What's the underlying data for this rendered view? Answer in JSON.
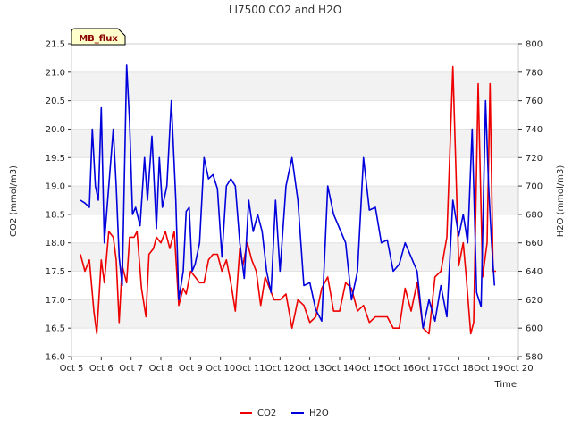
{
  "chart_data": {
    "type": "line",
    "title": "LI7500 CO2 and H2O",
    "xlabel": "Time",
    "ylabel_left": "CO2 (mmol/m3)",
    "ylabel_right": "H2O (mmol/m3)",
    "badge": "MB_flux",
    "x_ticks": [
      "Oct 5",
      "Oct 6",
      "Oct 7",
      "Oct 8",
      "Oct 9",
      "Oct 10",
      "Oct 11",
      "Oct 12",
      "Oct 13",
      "Oct 14",
      "Oct 15",
      "Oct 16",
      "Oct 17",
      "Oct 18",
      "Oct 19",
      "Oct 20"
    ],
    "xlim_days": [
      5,
      20
    ],
    "ylim_left": [
      16.0,
      21.5
    ],
    "y_ticks_left": [
      "16.0",
      "16.5",
      "17.0",
      "17.5",
      "18.0",
      "18.5",
      "19.0",
      "19.5",
      "20.0",
      "20.5",
      "21.0",
      "21.5"
    ],
    "ylim_right": [
      580,
      800
    ],
    "y_ticks_right": [
      "580",
      "600",
      "620",
      "640",
      "660",
      "680",
      "700",
      "720",
      "740",
      "760",
      "780",
      "800"
    ],
    "grid": "horizontal bands",
    "legend_position": "bottom",
    "series": [
      {
        "name": "CO2",
        "axis": "left",
        "color": "#ee0000",
        "x": [
          5.3,
          5.45,
          5.6,
          5.75,
          5.85,
          6.0,
          6.1,
          6.25,
          6.4,
          6.5,
          6.6,
          6.7,
          6.85,
          6.95,
          7.1,
          7.2,
          7.35,
          7.5,
          7.6,
          7.75,
          7.85,
          8.0,
          8.15,
          8.3,
          8.45,
          8.6,
          8.75,
          8.85,
          9.0,
          9.15,
          9.3,
          9.45,
          9.6,
          9.75,
          9.9,
          10.05,
          10.2,
          10.35,
          10.5,
          10.65,
          10.75,
          10.9,
          11.05,
          11.2,
          11.35,
          11.5,
          11.65,
          11.8,
          12.0,
          12.2,
          12.4,
          12.6,
          12.8,
          13.0,
          13.2,
          13.4,
          13.6,
          13.8,
          14.0,
          14.2,
          14.4,
          14.6,
          14.8,
          15.0,
          15.2,
          15.4,
          15.6,
          15.8,
          16.0,
          16.2,
          16.4,
          16.6,
          16.8,
          17.0,
          17.2,
          17.4,
          17.6,
          17.8,
          18.0,
          18.15,
          18.25,
          18.4,
          18.5,
          18.65,
          18.8,
          18.95,
          19.05,
          19.15,
          19.25
        ],
        "y": [
          17.8,
          17.5,
          17.7,
          16.8,
          16.4,
          17.7,
          17.3,
          18.2,
          18.1,
          17.7,
          16.6,
          17.6,
          17.3,
          18.1,
          18.1,
          18.2,
          17.2,
          16.7,
          17.8,
          17.9,
          18.1,
          18.0,
          18.2,
          17.9,
          18.2,
          16.9,
          17.2,
          17.1,
          17.5,
          17.4,
          17.3,
          17.3,
          17.7,
          17.8,
          17.8,
          17.5,
          17.7,
          17.3,
          16.8,
          17.9,
          17.6,
          18.0,
          17.7,
          17.5,
          16.9,
          17.4,
          17.2,
          17.0,
          17.0,
          17.1,
          16.5,
          17.0,
          16.9,
          16.6,
          16.7,
          17.2,
          17.4,
          16.8,
          16.8,
          17.3,
          17.2,
          16.8,
          16.9,
          16.6,
          16.7,
          16.7,
          16.7,
          16.5,
          16.5,
          17.2,
          16.8,
          17.3,
          16.5,
          16.4,
          17.4,
          17.5,
          18.1,
          21.1,
          17.6,
          18.0,
          17.4,
          16.4,
          16.6,
          20.8,
          17.4,
          18.0,
          20.8,
          17.5,
          17.5
        ]
      },
      {
        "name": "H2O",
        "axis": "right",
        "color": "#0000dd",
        "x": [
          5.3,
          5.45,
          5.6,
          5.7,
          5.8,
          5.9,
          6.0,
          6.1,
          6.25,
          6.4,
          6.5,
          6.6,
          6.7,
          6.85,
          6.95,
          7.05,
          7.15,
          7.3,
          7.45,
          7.55,
          7.7,
          7.85,
          7.95,
          8.05,
          8.2,
          8.35,
          8.5,
          8.6,
          8.75,
          8.85,
          8.95,
          9.05,
          9.15,
          9.3,
          9.45,
          9.6,
          9.75,
          9.9,
          10.05,
          10.2,
          10.35,
          10.5,
          10.65,
          10.8,
          10.95,
          11.1,
          11.25,
          11.4,
          11.55,
          11.7,
          11.85,
          12.0,
          12.2,
          12.4,
          12.6,
          12.8,
          13.0,
          13.2,
          13.4,
          13.6,
          13.8,
          14.0,
          14.2,
          14.4,
          14.6,
          14.8,
          15.0,
          15.2,
          15.4,
          15.6,
          15.8,
          16.0,
          16.2,
          16.4,
          16.6,
          16.8,
          17.0,
          17.2,
          17.4,
          17.6,
          17.8,
          18.0,
          18.15,
          18.3,
          18.45,
          18.6,
          18.75,
          18.9,
          19.0,
          19.1,
          19.2
        ],
        "y": [
          690,
          688,
          685,
          740,
          700,
          690,
          755,
          660,
          700,
          740,
          700,
          650,
          630,
          785,
          745,
          680,
          685,
          672,
          720,
          690,
          735,
          670,
          720,
          685,
          700,
          760,
          690,
          620,
          640,
          682,
          685,
          640,
          645,
          660,
          720,
          705,
          708,
          698,
          650,
          700,
          705,
          700,
          660,
          635,
          690,
          668,
          680,
          668,
          640,
          625,
          690,
          640,
          700,
          720,
          690,
          630,
          632,
          613,
          605,
          700,
          680,
          670,
          660,
          620,
          640,
          720,
          683,
          685,
          660,
          662,
          640,
          645,
          660,
          650,
          640,
          600,
          620,
          605,
          630,
          608,
          690,
          665,
          680,
          660,
          740,
          625,
          615,
          760,
          700,
          660,
          630
        ]
      }
    ]
  },
  "legend": {
    "co2_label": "CO2",
    "h2o_label": "H2O"
  }
}
